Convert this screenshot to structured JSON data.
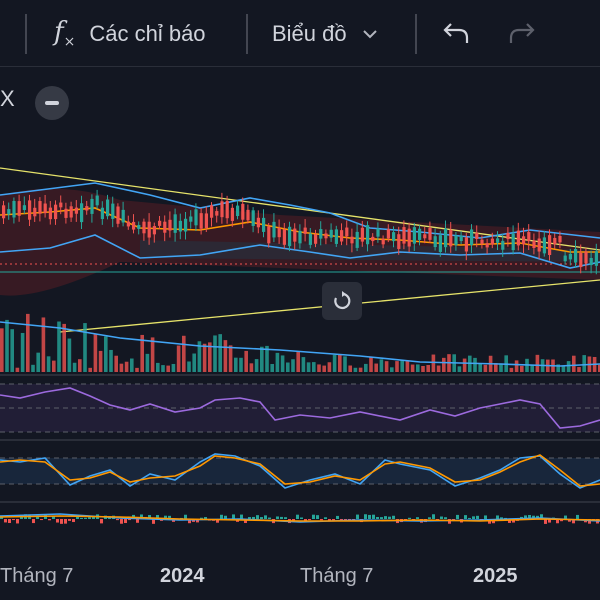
{
  "toolbar": {
    "indicators_label": "Các chỉ báo",
    "chart_type_label": "Biểu đồ"
  },
  "legend": {
    "close_glyph": "X"
  },
  "time_axis": [
    "Tháng 7",
    "2024",
    "Tháng 7",
    "2025"
  ],
  "colors": {
    "background": "#131722",
    "up": "#26a69a",
    "down": "#ef5350",
    "bollinger": "#42a5f5",
    "ma": "#ff9800",
    "trendline": "#e6e36a",
    "rsi": "#9c6ade"
  },
  "icons": [
    "fx-icon",
    "chevron-down-icon",
    "undo-icon",
    "redo-icon",
    "minus-icon",
    "reset-icon"
  ]
}
